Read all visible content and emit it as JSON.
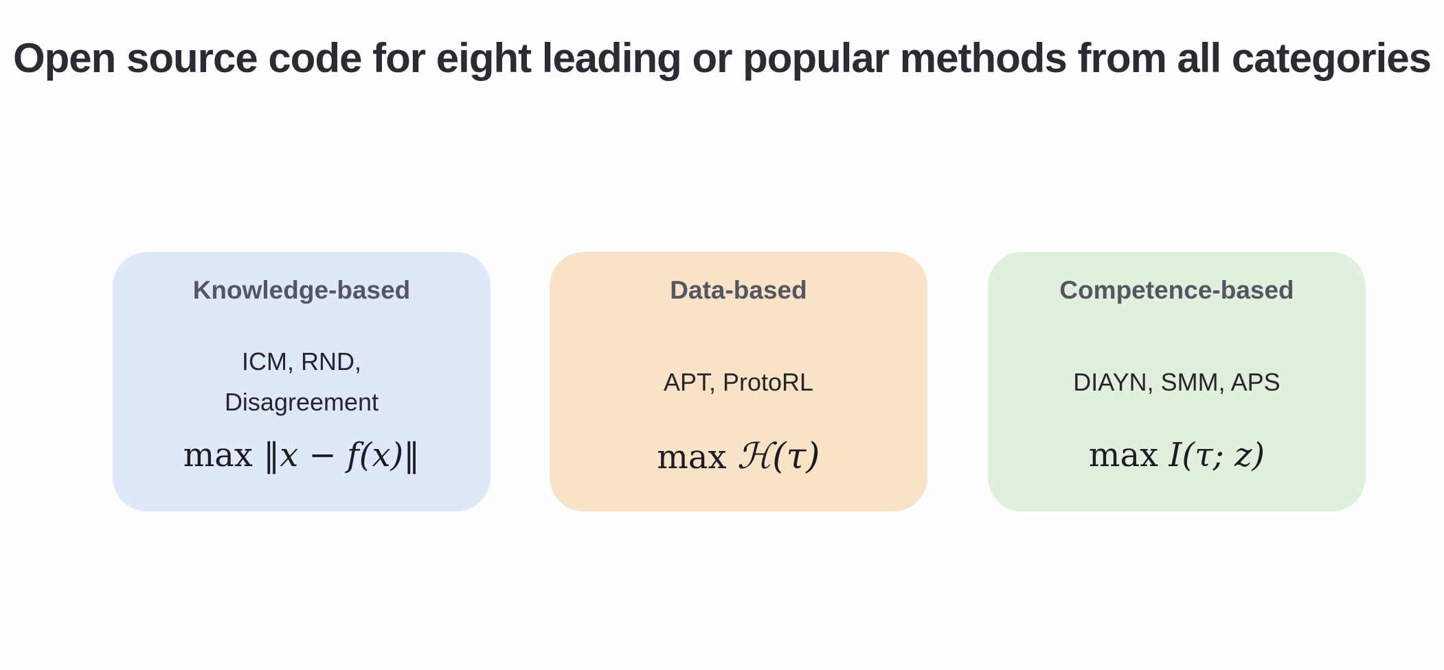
{
  "title": "Open source code for eight leading or popular methods from all categories",
  "categories": [
    {
      "name": "Knowledge-based",
      "methods_lines": [
        "ICM, RND,",
        "Disagreement"
      ],
      "formula": {
        "op": "max",
        "expr": "‖x − f(x)‖"
      },
      "color": "#dfe8f8"
    },
    {
      "name": "Data-based",
      "methods_lines": [
        "APT, ProtoRL"
      ],
      "formula": {
        "op": "max",
        "expr": "ℋ(τ)"
      },
      "color": "#f8e3c6"
    },
    {
      "name": "Competence-based",
      "methods_lines": [
        "DIAYN, SMM, APS"
      ],
      "formula": {
        "op": "max",
        "expr": "I(τ; z)"
      },
      "color": "#e0f0dc"
    }
  ],
  "colors": {
    "title_text": "#2b2c33",
    "card_title_text": "#545662",
    "body_text": "#25262c"
  }
}
